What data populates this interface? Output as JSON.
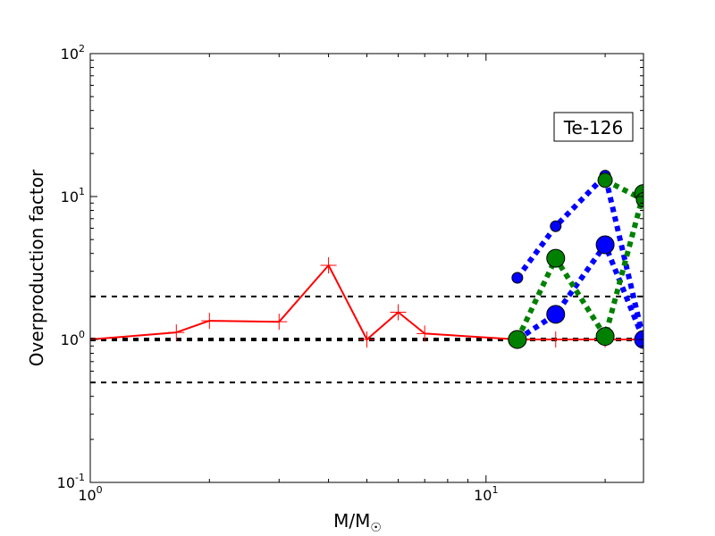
{
  "chart_data": {
    "type": "line",
    "xscale": "log",
    "yscale": "log",
    "xlim": [
      1,
      25
    ],
    "ylim": [
      0.1,
      100
    ],
    "xlabel": "M/M",
    "xlabel_sub": "☉",
    "ylabel": "Overproduction factor",
    "annotation": "Te-126",
    "annotation_position": "top-right",
    "grid": false,
    "x_ticks": [
      {
        "value": 1,
        "base": "10",
        "exp": "0"
      },
      {
        "value": 10,
        "base": "10",
        "exp": "1"
      }
    ],
    "y_ticks": [
      {
        "value": 0.1,
        "base": "10",
        "exp": "-1"
      },
      {
        "value": 1,
        "base": "10",
        "exp": "0"
      },
      {
        "value": 10,
        "base": "10",
        "exp": "1"
      },
      {
        "value": 100,
        "base": "10",
        "exp": "2"
      }
    ],
    "reference_lines": [
      {
        "y": 2.0,
        "style": "dashed",
        "color": "#000000",
        "width": 2
      },
      {
        "y": 1.0,
        "style": "dashed",
        "color": "#000000",
        "width": 4
      },
      {
        "y": 0.5,
        "style": "dashed",
        "color": "#000000",
        "width": 2
      }
    ],
    "series": [
      {
        "color": "#ff0000",
        "line": "solid",
        "marker": "plus",
        "x": [
          1.0,
          1.65,
          2.0,
          3.0,
          4.0,
          5.0,
          6.0,
          7.0,
          12.0,
          15.0,
          20.0,
          25.0
        ],
        "y": [
          1.0,
          1.12,
          1.35,
          1.33,
          3.3,
          1.0,
          1.55,
          1.1,
          1.0,
          1.0,
          1.0,
          1.0
        ]
      },
      {
        "color": "#0000ff",
        "line": "dotted",
        "marker": "circle",
        "marker_size": "small",
        "x": [
          12.0,
          15.0,
          20.0,
          25.0
        ],
        "y": [
          2.7,
          6.2,
          14.0,
          1.0
        ]
      },
      {
        "color": "#0000ff",
        "line": "dotted",
        "marker": "circle",
        "marker_size": "large",
        "x": [
          12.0,
          15.0,
          20.0,
          25.0
        ],
        "y": [
          1.0,
          1.5,
          4.6,
          1.0
        ]
      },
      {
        "color": "#008000",
        "line": "dotted",
        "marker": "circle",
        "marker_size": "large",
        "x": [
          12.0,
          15.0,
          20.0,
          25.0
        ],
        "y": [
          1.0,
          3.7,
          1.05,
          10.5
        ]
      },
      {
        "color": "#008000",
        "line": "dotted",
        "marker": "circle",
        "marker_size": "medium",
        "x": [
          20.0,
          25.0
        ],
        "y": [
          13.0,
          9.5
        ]
      }
    ]
  }
}
